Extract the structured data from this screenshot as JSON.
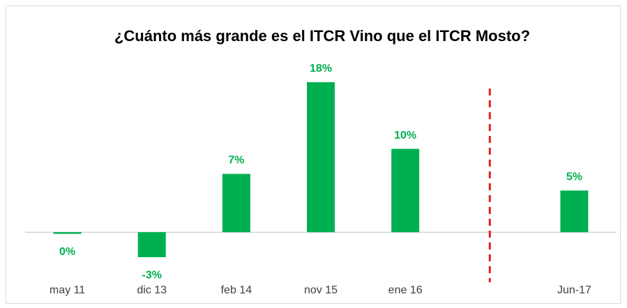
{
  "chart_data": {
    "type": "bar",
    "title": "¿Cuánto más grande es el ITCR Vino que el ITCR Mosto?",
    "categories": [
      "may 11",
      "dic 13",
      "feb 14",
      "nov 15",
      "ene 16",
      null,
      "Jun-17"
    ],
    "values": [
      -0.2,
      -3,
      7,
      18,
      10,
      null,
      5
    ],
    "value_labels": [
      "0%",
      "-3%",
      "7%",
      "18%",
      "10%",
      null,
      "5%"
    ],
    "color": "#00b050",
    "ylim": [
      -5,
      20
    ]
  }
}
